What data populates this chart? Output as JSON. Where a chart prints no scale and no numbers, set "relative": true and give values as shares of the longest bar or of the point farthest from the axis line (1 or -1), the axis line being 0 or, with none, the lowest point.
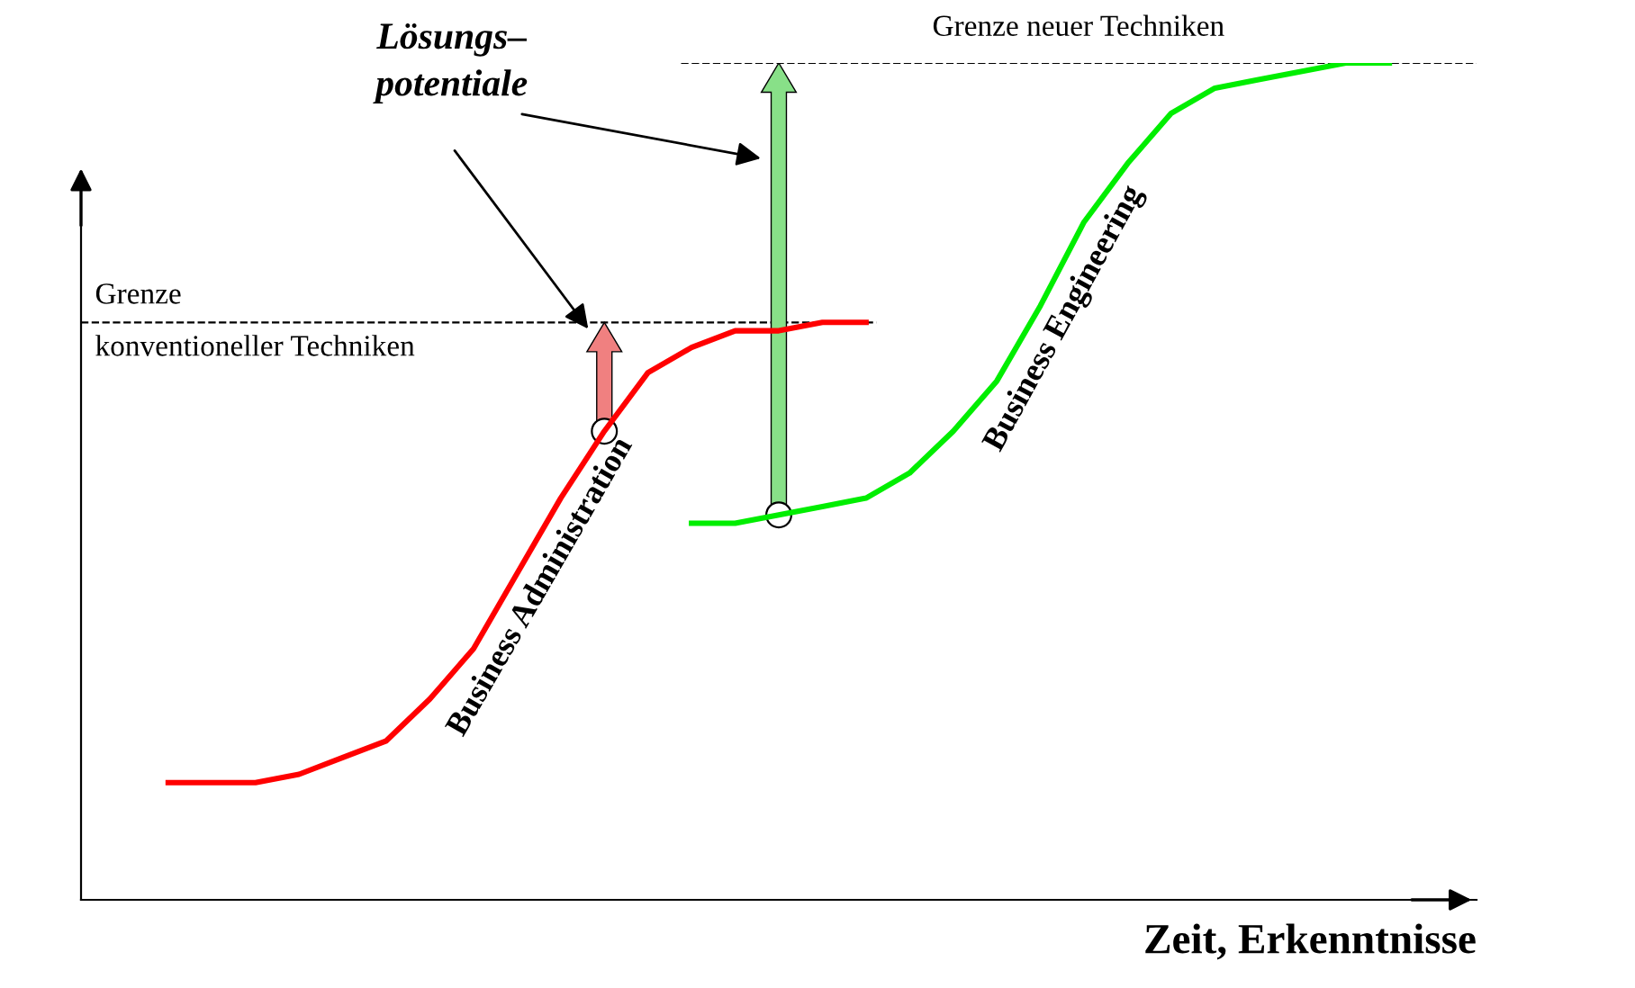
{
  "chart_data": {
    "type": "line",
    "relative": true,
    "grid": false,
    "legend": false,
    "marker": "none",
    "line_style": "solid",
    "xlabel": "Zeit, Erkenntnisse",
    "categories": [
      null,
      null,
      null,
      null,
      null,
      null,
      null,
      null,
      null,
      null,
      null,
      null,
      null,
      null,
      null,
      null,
      null,
      null,
      null,
      null,
      null,
      null,
      null,
      null,
      null,
      null,
      null,
      null,
      null,
      null,
      null,
      null,
      null
    ],
    "series": [
      {
        "name": "Business Administration",
        "color": "#ff0000",
        "values": [
          null,
          null,
          0.14,
          0.14,
          0.14,
          0.15,
          0.17,
          0.19,
          0.24,
          0.3,
          0.39,
          0.48,
          0.56,
          0.63,
          0.66,
          0.68,
          0.68,
          0.69,
          0.69,
          null,
          null,
          null,
          null,
          null,
          null,
          null,
          null,
          null,
          null,
          null,
          null,
          null,
          null
        ]
      },
      {
        "name": "Business Engineering",
        "color": "#00ee00",
        "values": [
          null,
          null,
          null,
          null,
          null,
          null,
          null,
          null,
          null,
          null,
          null,
          null,
          null,
          null,
          0.45,
          0.45,
          0.46,
          0.47,
          0.48,
          0.51,
          0.56,
          0.62,
          0.71,
          0.81,
          0.88,
          0.94,
          0.97,
          0.98,
          0.99,
          1.0,
          1.0,
          null,
          null
        ]
      }
    ],
    "ref_lines": [
      {
        "axis": "y",
        "value": 0.69,
        "label": "Grenze\nkonventioneller Techniken",
        "line_style": "dashed",
        "color": "#000000"
      },
      {
        "axis": "y",
        "value": 1.0,
        "label": "Grenze neuer Techniken",
        "line_style": "dashed",
        "color": "#000000"
      }
    ],
    "annotations": [
      "Lösungs–\npotentiale"
    ]
  }
}
